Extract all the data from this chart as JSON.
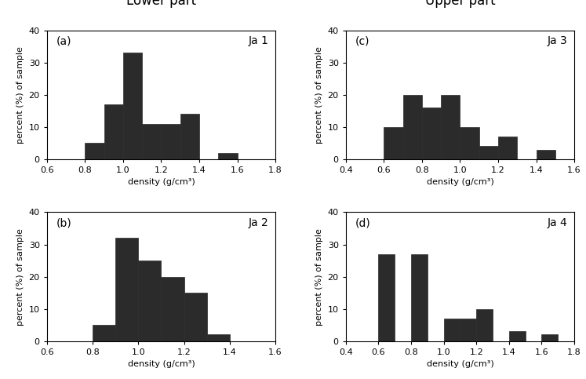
{
  "bar_color": "#2b2b2b",
  "edge_color": "#2b2b2b",
  "title_left": "Lower part",
  "title_right": "Upper part",
  "title_color": "#000000",
  "panels": [
    {
      "label": "(a)",
      "sample_label": "Ja 1",
      "xlim": [
        0.6,
        1.8
      ],
      "xticks": [
        0.6,
        0.8,
        1.0,
        1.2,
        1.4,
        1.6,
        1.8
      ],
      "ylim": [
        0,
        40
      ],
      "yticks": [
        0,
        10,
        20,
        30,
        40
      ],
      "bin_edges": [
        0.8,
        0.9,
        1.0,
        1.1,
        1.2,
        1.3,
        1.4,
        1.5,
        1.6
      ],
      "values": [
        5,
        17,
        33,
        11,
        11,
        14,
        0,
        2
      ]
    },
    {
      "label": "(b)",
      "sample_label": "Ja 2",
      "xlim": [
        0.6,
        1.6
      ],
      "xticks": [
        0.6,
        0.8,
        1.0,
        1.2,
        1.4,
        1.6
      ],
      "ylim": [
        0,
        40
      ],
      "yticks": [
        0,
        10,
        20,
        30,
        40
      ],
      "bin_edges": [
        0.8,
        0.9,
        1.0,
        1.1,
        1.2,
        1.3,
        1.4
      ],
      "values": [
        5,
        32,
        25,
        20,
        15,
        2
      ]
    },
    {
      "label": "(c)",
      "sample_label": "Ja 3",
      "xlim": [
        0.4,
        1.6
      ],
      "xticks": [
        0.4,
        0.6,
        0.8,
        1.0,
        1.2,
        1.4,
        1.6
      ],
      "ylim": [
        0,
        40
      ],
      "yticks": [
        0,
        10,
        20,
        30,
        40
      ],
      "bin_edges": [
        0.6,
        0.7,
        0.8,
        0.9,
        1.0,
        1.1,
        1.2,
        1.3,
        1.4,
        1.5
      ],
      "values": [
        10,
        20,
        16,
        20,
        10,
        4,
        7,
        0,
        3
      ]
    },
    {
      "label": "(d)",
      "sample_label": "Ja 4",
      "xlim": [
        0.4,
        1.8
      ],
      "xticks": [
        0.4,
        0.6,
        0.8,
        1.0,
        1.2,
        1.4,
        1.6,
        1.8
      ],
      "ylim": [
        0,
        40
      ],
      "yticks": [
        0,
        10,
        20,
        30,
        40
      ],
      "bin_edges": [
        0.6,
        0.7,
        0.8,
        0.9,
        1.0,
        1.1,
        1.2,
        1.3,
        1.4,
        1.5,
        1.6,
        1.7
      ],
      "values": [
        27,
        0,
        27,
        0,
        7,
        7,
        10,
        0,
        3,
        0,
        2
      ]
    }
  ],
  "xlabel": "density (g/cm³)",
  "ylabel": "percent (%) of sample",
  "label_fontsize": 10,
  "tick_fontsize": 8,
  "title_fontsize": 12
}
